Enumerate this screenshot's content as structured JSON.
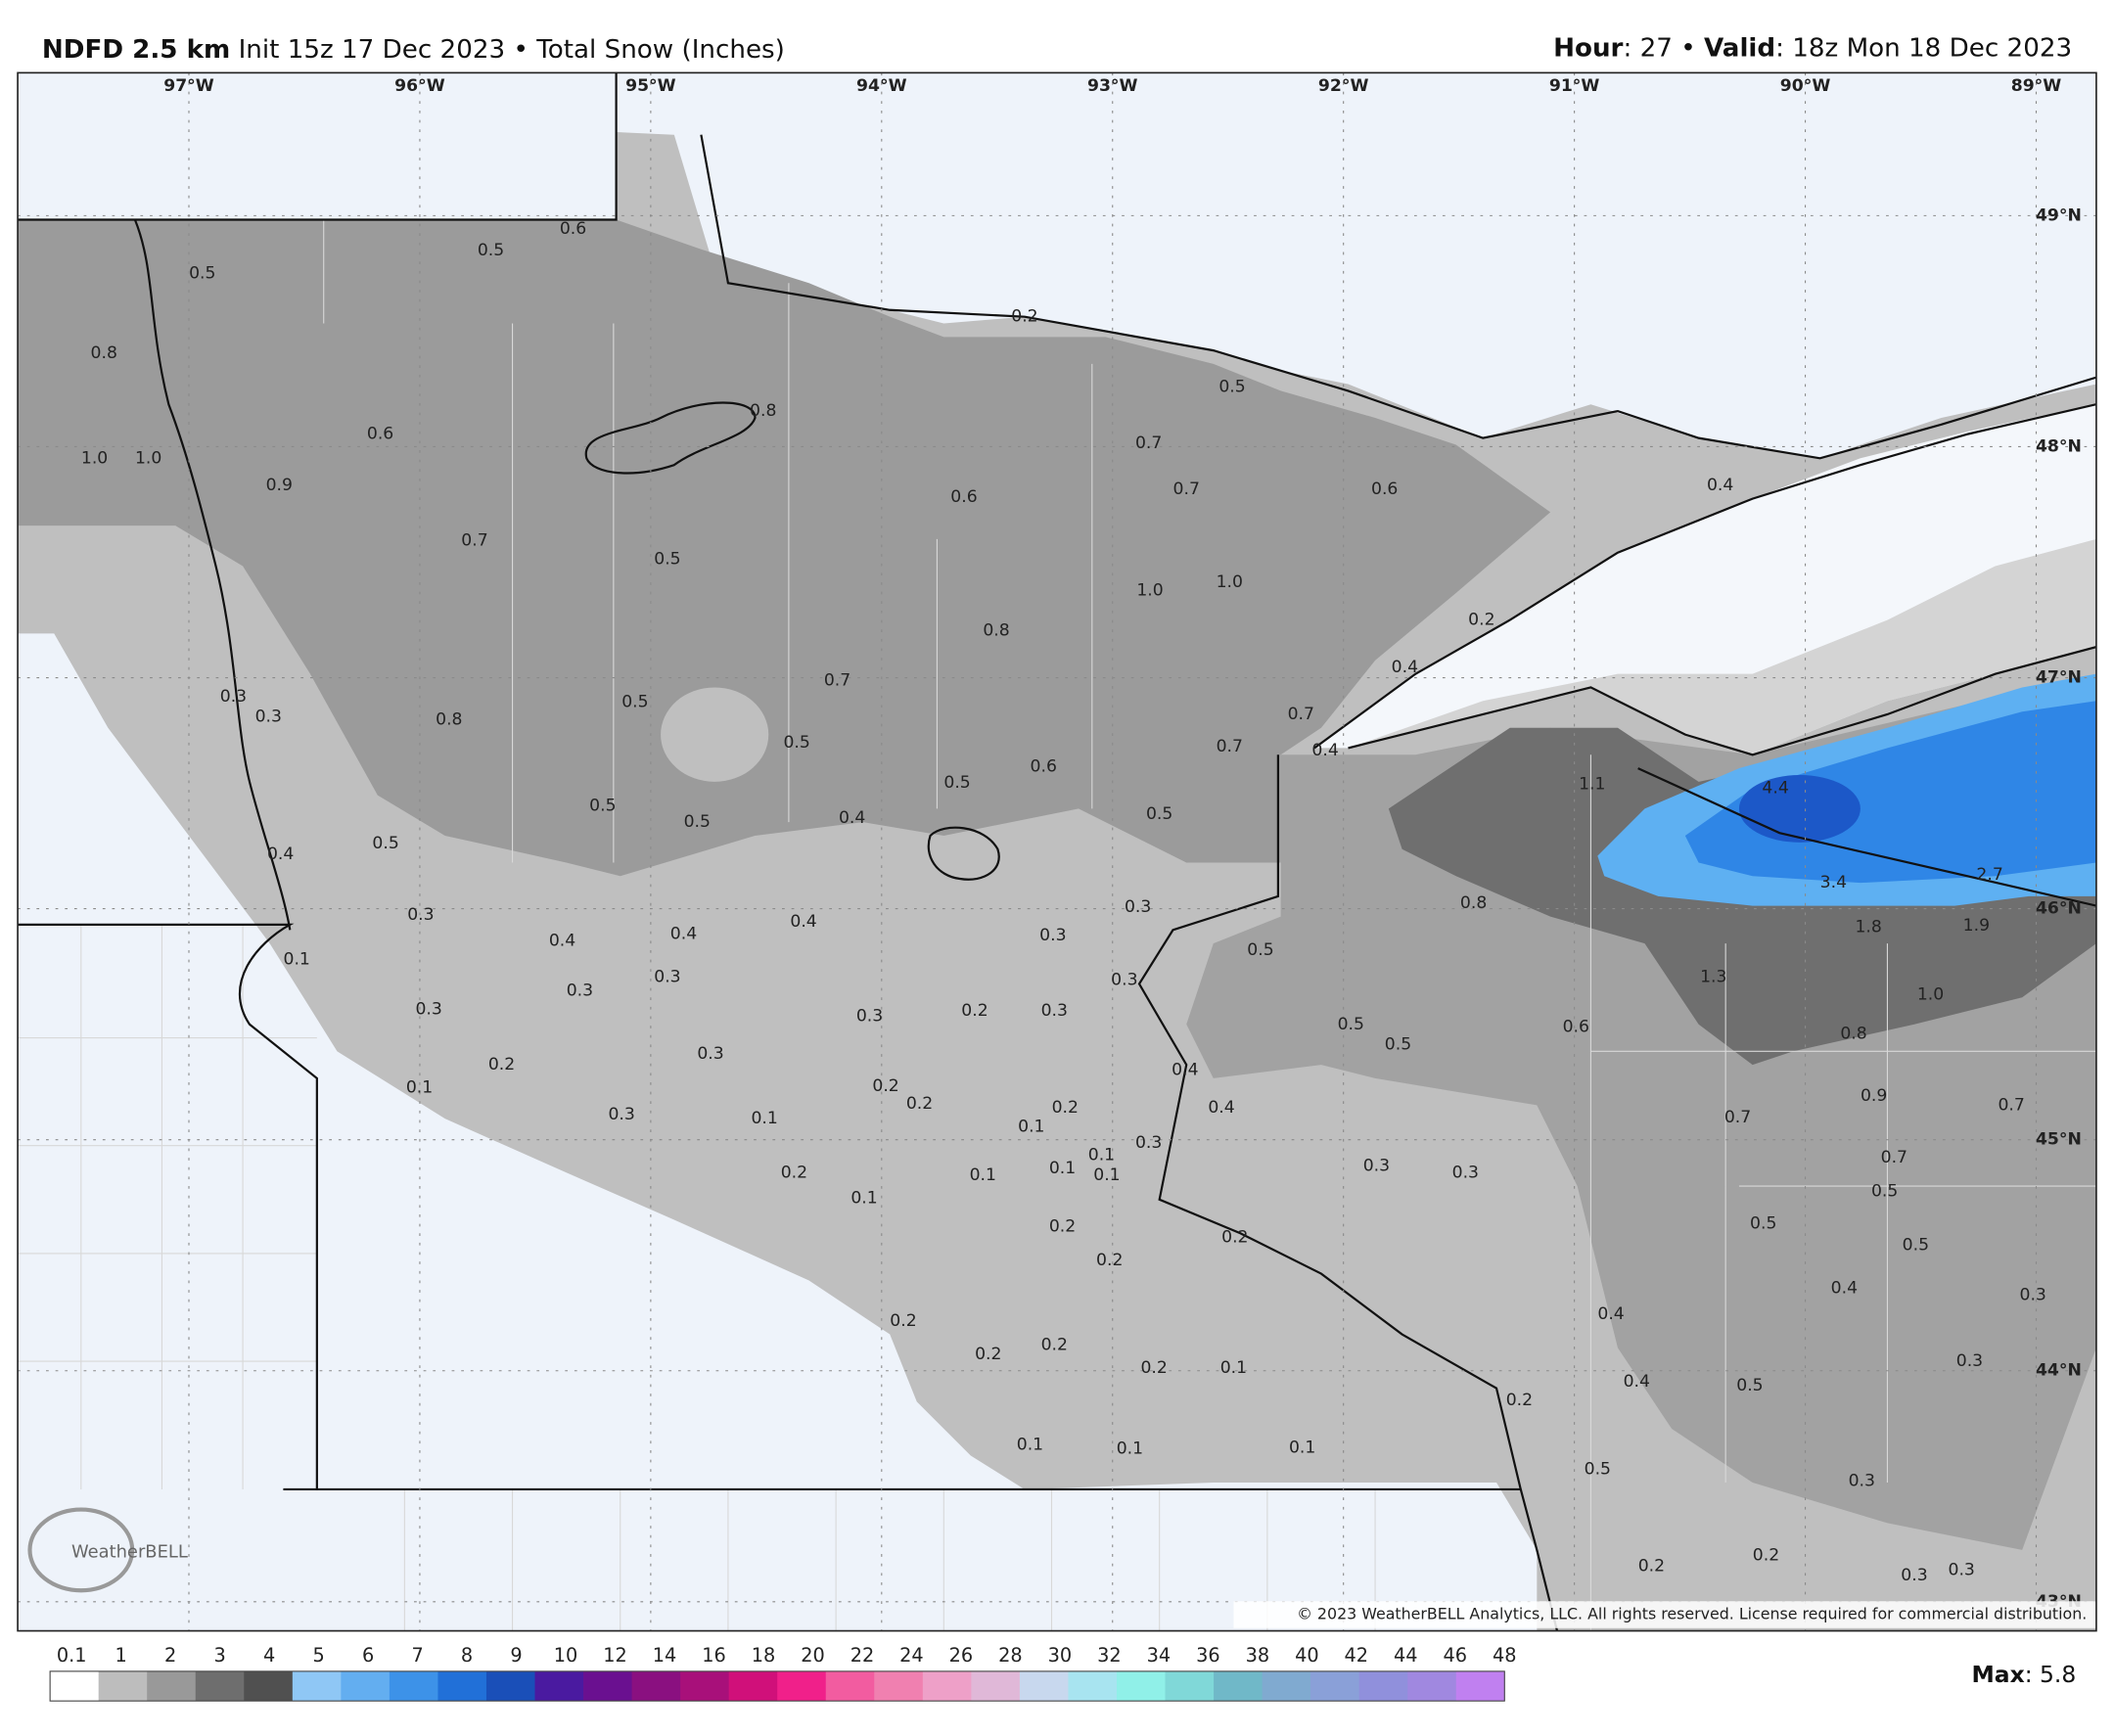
{
  "header": {
    "model": "NDFD 2.5 km",
    "init": "Init 15z 17 Dec 2023",
    "sep": "•",
    "field": "Total Snow (Inches)",
    "hour_key": "Hour",
    "hour_val": ": 27",
    "valid_key": "Valid",
    "valid_val": ": 18z Mon 18 Dec 2023"
  },
  "map": {
    "lon_labels": [
      "97°W",
      "96°W",
      "95°W",
      "94°W",
      "93°W",
      "92°W",
      "91°W",
      "90°W",
      "89°W"
    ],
    "lat_labels": [
      "49°N",
      "48°N",
      "47°N",
      "46°N",
      "45°N",
      "44°N",
      "43°N"
    ],
    "values": [
      {
        "text": "0.5"
      },
      {
        "text": "0.5"
      },
      {
        "text": "0.6"
      },
      {
        "text": "0.8"
      },
      {
        "text": "1.0"
      },
      {
        "text": "1.0"
      },
      {
        "text": "0.9"
      },
      {
        "text": "0.6"
      },
      {
        "text": "0.7"
      },
      {
        "text": "0.8"
      },
      {
        "text": "0.2"
      },
      {
        "text": "0.5"
      },
      {
        "text": "0.7"
      },
      {
        "text": "0.7"
      },
      {
        "text": "0.6"
      },
      {
        "text": "0.4"
      },
      {
        "text": "0.6"
      },
      {
        "text": "0.5"
      },
      {
        "text": "1.0"
      },
      {
        "text": "1.0"
      },
      {
        "text": "0.8"
      },
      {
        "text": "0.2"
      },
      {
        "text": "0.4"
      },
      {
        "text": "0.7"
      },
      {
        "text": "0.5"
      },
      {
        "text": "0.3"
      },
      {
        "text": "0.3"
      },
      {
        "text": "0.8"
      },
      {
        "text": "0.7"
      },
      {
        "text": "0.7"
      },
      {
        "text": "0.4"
      },
      {
        "text": "0.5"
      },
      {
        "text": "0.6"
      },
      {
        "text": "0.5"
      },
      {
        "text": "1.1",
        "color": "#ffffff"
      },
      {
        "text": "4.4",
        "color": "#ffffff"
      },
      {
        "text": "0.5"
      },
      {
        "text": "0.5"
      },
      {
        "text": "0.4"
      },
      {
        "text": "0.5"
      },
      {
        "text": "0.4"
      },
      {
        "text": "0.5"
      },
      {
        "text": "2.7",
        "color": "#ffffff"
      },
      {
        "text": "3.4",
        "color": "#ffffff"
      },
      {
        "text": "0.8"
      },
      {
        "text": "0.3"
      },
      {
        "text": "0.3"
      },
      {
        "text": "1.8",
        "color": "#ffffff"
      },
      {
        "text": "1.9",
        "color": "#ffffff"
      },
      {
        "text": "0.4"
      },
      {
        "text": "0.4"
      },
      {
        "text": "0.4"
      },
      {
        "text": "0.3"
      },
      {
        "text": "0.1"
      },
      {
        "text": "0.5"
      },
      {
        "text": "1.3",
        "color": "#ffffff"
      },
      {
        "text": "0.3"
      },
      {
        "text": "0.3"
      },
      {
        "text": "0.3"
      },
      {
        "text": "1.0",
        "color": "#ffffff"
      },
      {
        "text": "0.3"
      },
      {
        "text": "0.3"
      },
      {
        "text": "0.2"
      },
      {
        "text": "0.3"
      },
      {
        "text": "0.5"
      },
      {
        "text": "0.5"
      },
      {
        "text": "0.6"
      },
      {
        "text": "0.8"
      },
      {
        "text": "0.3"
      },
      {
        "text": "0.2"
      },
      {
        "text": "0.4"
      },
      {
        "text": "0.1"
      },
      {
        "text": "0.9"
      },
      {
        "text": "0.2"
      },
      {
        "text": "0.2"
      },
      {
        "text": "0.3"
      },
      {
        "text": "0.1"
      },
      {
        "text": "0.1"
      },
      {
        "text": "0.2"
      },
      {
        "text": "0.4"
      },
      {
        "text": "0.7"
      },
      {
        "text": "0.7"
      },
      {
        "text": "0.3"
      },
      {
        "text": "0.1"
      },
      {
        "text": "0.7"
      },
      {
        "text": "0.2"
      },
      {
        "text": "0.1"
      },
      {
        "text": "0.1"
      },
      {
        "text": "0.1"
      },
      {
        "text": "0.3"
      },
      {
        "text": "0.3"
      },
      {
        "text": "0.1"
      },
      {
        "text": "0.5"
      },
      {
        "text": "0.5"
      },
      {
        "text": "0.2"
      },
      {
        "text": "0.2"
      },
      {
        "text": "0.5"
      },
      {
        "text": "0.2"
      },
      {
        "text": "0.4"
      },
      {
        "text": "0.4"
      },
      {
        "text": "0.3"
      },
      {
        "text": "0.2"
      },
      {
        "text": "0.2"
      },
      {
        "text": "0.2"
      },
      {
        "text": "0.2"
      },
      {
        "text": "0.1"
      },
      {
        "text": "0.3"
      },
      {
        "text": "0.4"
      },
      {
        "text": "0.5"
      },
      {
        "text": "0.2"
      },
      {
        "text": "0.1"
      },
      {
        "text": "0.1"
      },
      {
        "text": "0.1"
      },
      {
        "text": "0.5"
      },
      {
        "text": "0.3"
      },
      {
        "text": "0.2"
      },
      {
        "text": "0.2"
      },
      {
        "text": "0.3"
      },
      {
        "text": "0.3"
      }
    ],
    "copyright": "© 2023 WeatherBELL Analytics, LLC. All rights reserved. License required for commercial distribution.",
    "logo": "WeatherBELL"
  },
  "colorbar": {
    "labels": [
      "0.1",
      "1",
      "2",
      "3",
      "4",
      "5",
      "6",
      "7",
      "8",
      "9",
      "10",
      "12",
      "14",
      "16",
      "18",
      "20",
      "22",
      "24",
      "26",
      "28",
      "30",
      "32",
      "34",
      "36",
      "38",
      "40",
      "42",
      "44",
      "46",
      "48"
    ],
    "colors": [
      "#ffffff",
      "#bdbdbd",
      "#999999",
      "#6e6e6e",
      "#505050",
      "#8fc7f5",
      "#63aef0",
      "#3d92e8",
      "#2170d8",
      "#1a4fb8",
      "#4a1aa0",
      "#6a1090",
      "#8a1080",
      "#a8107a",
      "#d0107a",
      "#f0208a",
      "#f25ca0",
      "#f080b0",
      "#eea0c8",
      "#e0b8d8",
      "#c8d8ee",
      "#a8e4f0",
      "#90f0e8",
      "#80d8d8",
      "#70b8c8",
      "#80aad0",
      "#8aa0d8",
      "#9090dc",
      "#a088e0",
      "#c080f0"
    ],
    "max_key": "Max",
    "max_val": ": 5.8"
  }
}
